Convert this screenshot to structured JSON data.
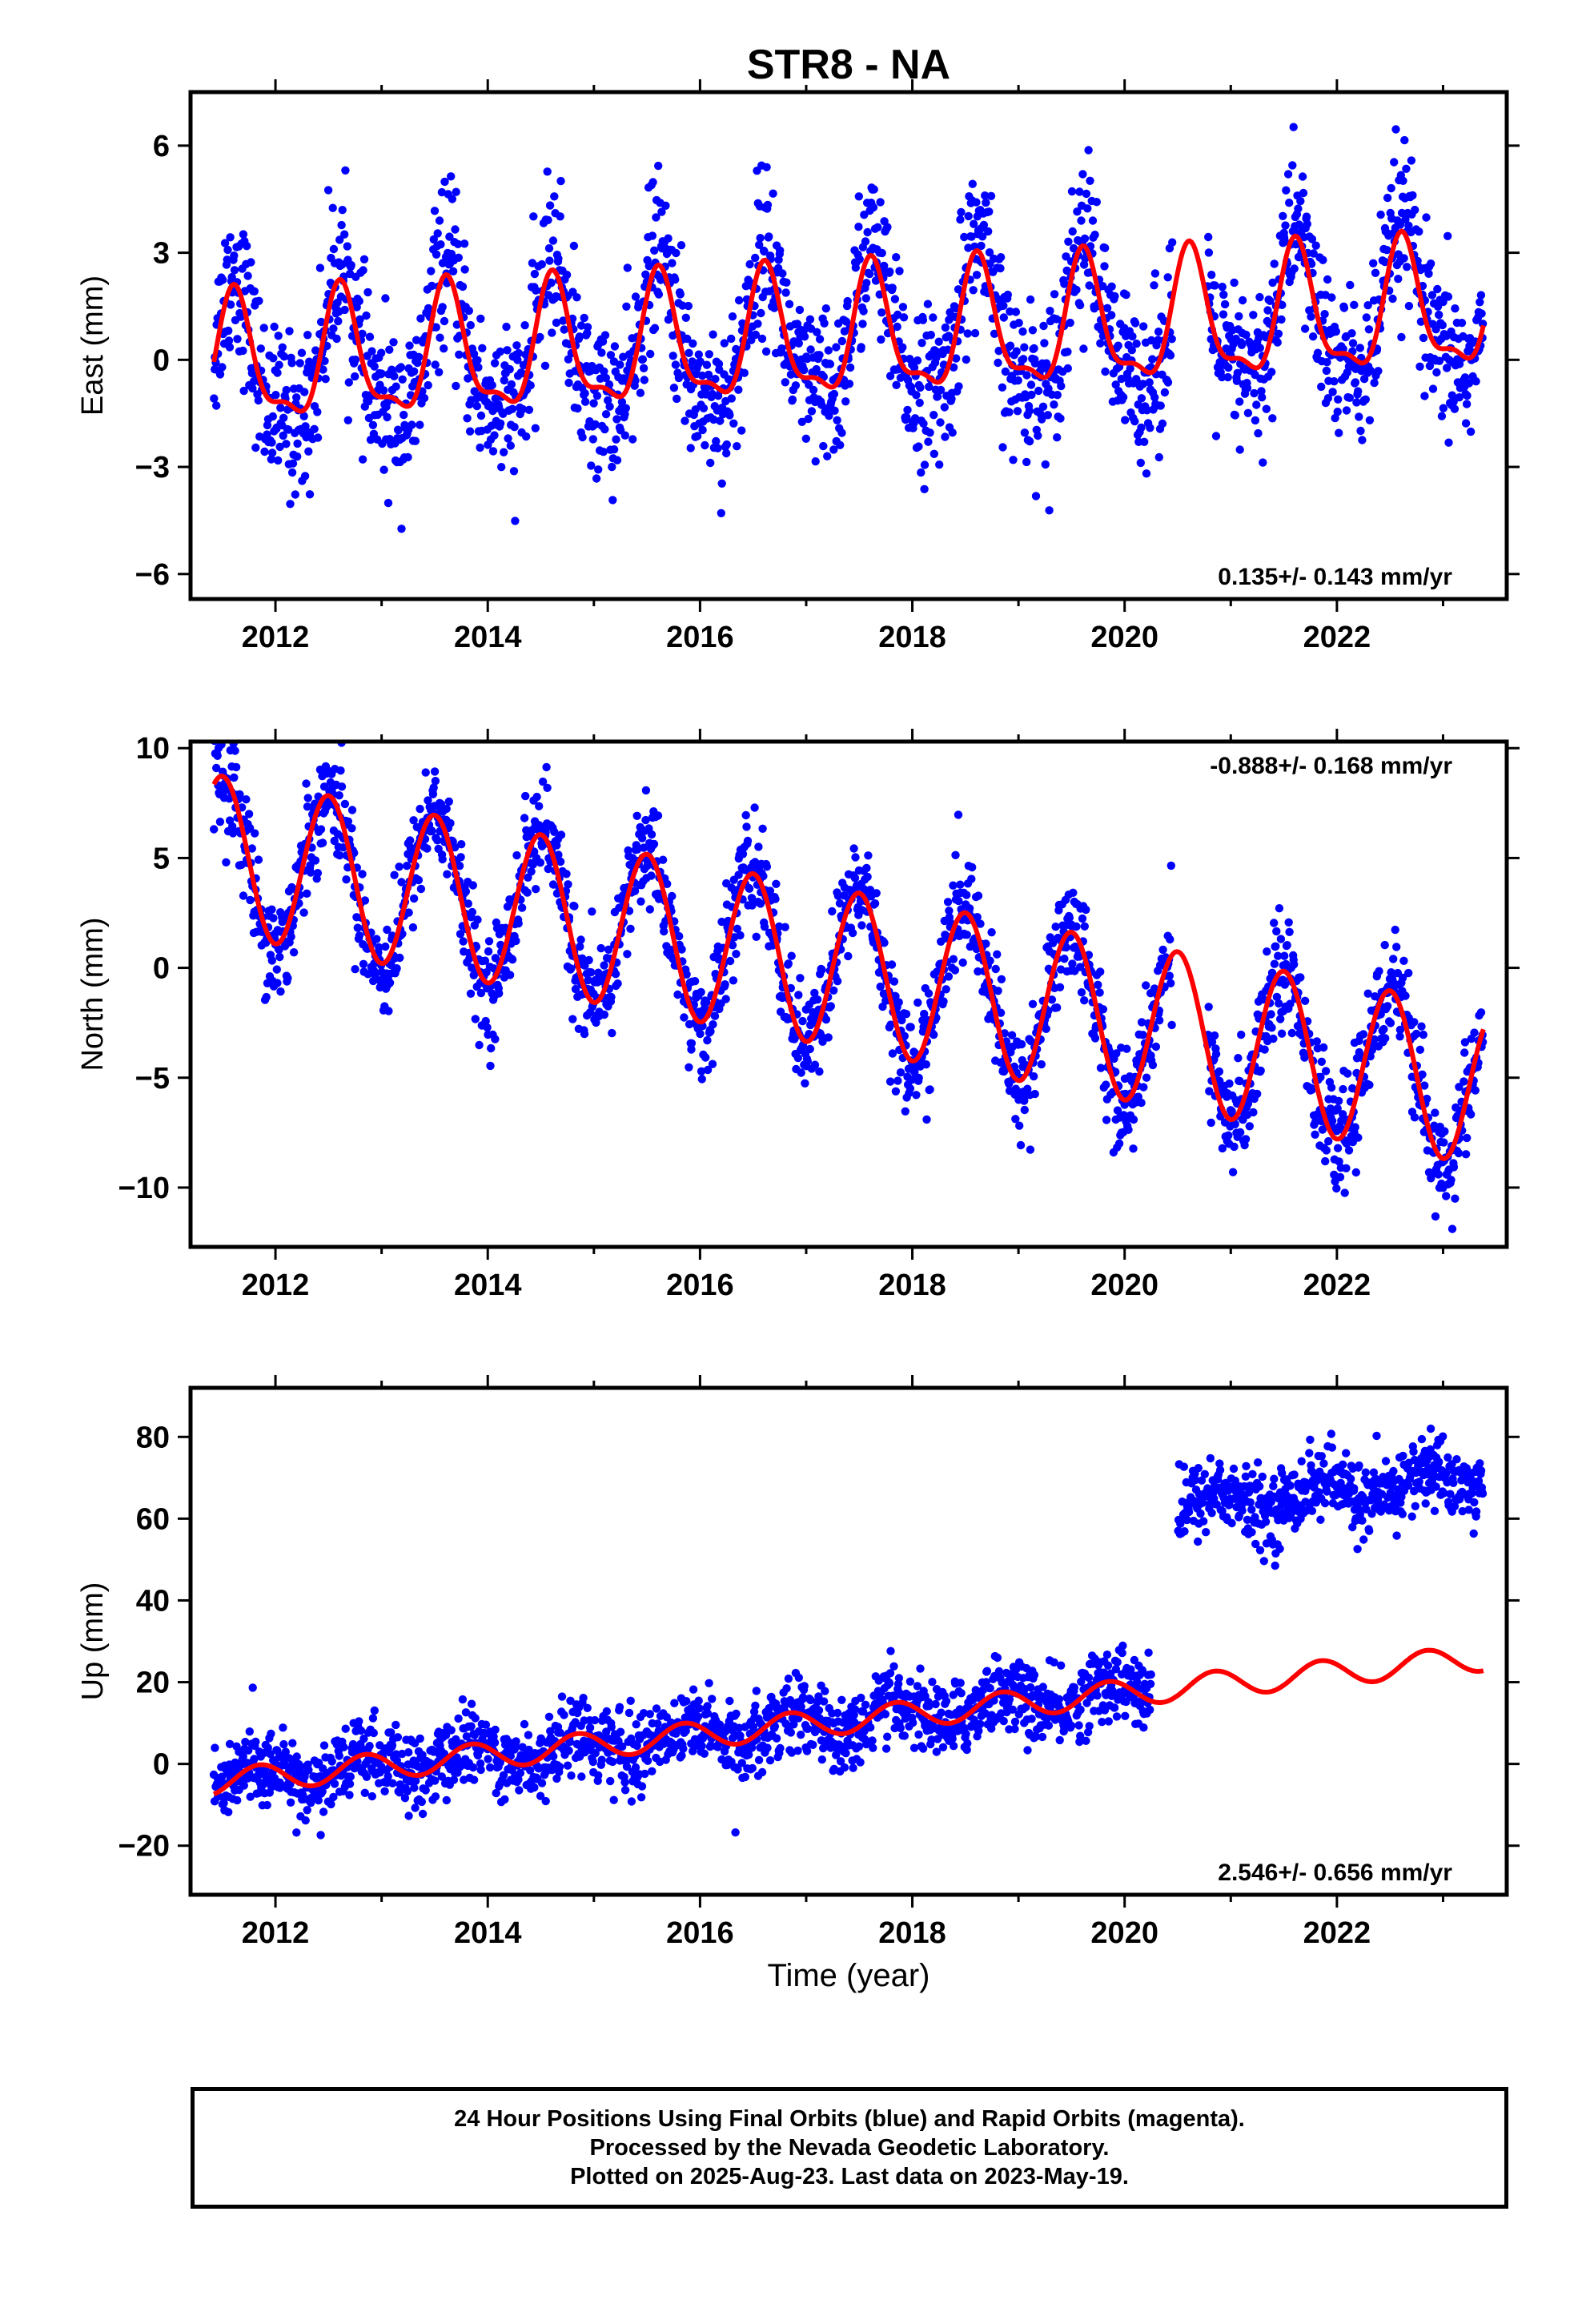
{
  "title": "STR8 - NA",
  "xlabel": "Time (year)",
  "caption": [
    "24 Hour Positions Using Final Orbits (blue) and Rapid Orbits (magenta).",
    "Processed by the Nevada Geodetic Laboratory.",
    "Plotted on 2025-Aug-23. Last data on 2023-May-19."
  ],
  "colors": {
    "data": "#0000ff",
    "model": "#ff0000",
    "axes": "#000000"
  },
  "chart_data": [
    {
      "type": "scatter",
      "component": "east",
      "ylabel": "East (mm)",
      "rate_text": "0.135+/- 0.143 mm/yr",
      "rate_position": "bottom-right",
      "xlim": [
        2011.2,
        2023.6
      ],
      "ylim": [
        -6.7,
        7.5
      ],
      "x_ticks": [
        2012,
        2014,
        2016,
        2018,
        2020,
        2022
      ],
      "x_tick_labels": [
        "2012",
        "2014",
        "2016",
        "2018",
        "2020",
        "2022"
      ],
      "y_ticks": [
        -6,
        -3,
        0,
        3,
        6
      ],
      "y_tick_labels": [
        "−6",
        "−3",
        "0",
        "3",
        "6"
      ],
      "data_span": [
        2011.42,
        2023.38
      ],
      "model": {
        "offset": -0.2,
        "rate": 0.135,
        "annual_amp": 1.7,
        "annual_peak": 0.62,
        "semiannual_amp": 0.6,
        "semiannual_phase": 0.1
      },
      "scatter": {
        "noise_sd": 1.1,
        "amp_scale": 1.2,
        "points": 2200,
        "steps": []
      },
      "gaps": [
        [
          2020.45,
          2020.78
        ]
      ]
    },
    {
      "type": "scatter",
      "component": "north",
      "ylabel": "North (mm)",
      "rate_text": "-0.888+/- 0.168 mm/yr",
      "rate_position": "top-right",
      "xlim": [
        2011.2,
        2023.6
      ],
      "ylim": [
        -12.7,
        10.3
      ],
      "x_ticks": [
        2012,
        2014,
        2016,
        2018,
        2020,
        2022
      ],
      "x_tick_labels": [
        "2012",
        "2014",
        "2016",
        "2018",
        "2020",
        "2022"
      ],
      "y_ticks": [
        -10,
        -5,
        0,
        5,
        10
      ],
      "y_tick_labels": [
        "−10",
        "−5",
        "0",
        "5",
        "10"
      ],
      "data_span": [
        2011.42,
        2023.38
      ],
      "model": {
        "offset": 5.2,
        "rate": -0.888,
        "annual_amp": 3.6,
        "annual_peak": 0.5,
        "semiannual_amp": 0.0,
        "semiannual_phase": 0.0
      },
      "scatter": {
        "noise_sd": 1.2,
        "amp_scale": 1.05,
        "points": 2200,
        "steps": []
      },
      "gaps": [
        [
          2020.45,
          2020.78
        ]
      ]
    },
    {
      "type": "scatter",
      "component": "up",
      "ylabel": "Up (mm)",
      "rate_text": "2.546+/- 0.656 mm/yr",
      "rate_position": "bottom-right",
      "xlim": [
        2011.2,
        2023.6
      ],
      "ylim": [
        -32,
        92
      ],
      "x_ticks": [
        2012,
        2014,
        2016,
        2018,
        2020,
        2022
      ],
      "x_tick_labels": [
        "2012",
        "2014",
        "2016",
        "2018",
        "2020",
        "2022"
      ],
      "y_ticks": [
        -20,
        0,
        20,
        40,
        60,
        80
      ],
      "y_tick_labels": [
        "−20",
        "0",
        "20",
        "40",
        "60",
        "80"
      ],
      "data_span": [
        2011.42,
        2023.38
      ],
      "model": {
        "offset": -4.5,
        "rate": 2.546,
        "annual_amp": 3.2,
        "annual_peak": 0.85,
        "semiannual_amp": 0.0,
        "semiannual_phase": 0.0
      },
      "scatter": {
        "noise_sd": 4.5,
        "amp_scale": 1.0,
        "points": 2200,
        "steps": [
          [
            2020.5,
            44
          ]
        ]
      },
      "gaps": [
        [
          2020.25,
          2020.5
        ]
      ]
    }
  ]
}
